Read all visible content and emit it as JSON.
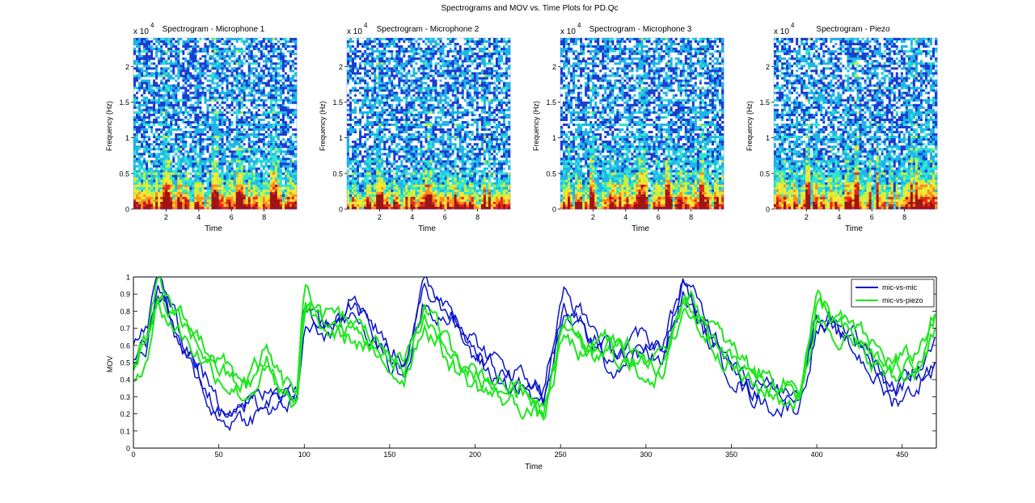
{
  "figure": {
    "title": "Spectrograms and MOV vs. Time Plots for PD.Qc"
  },
  "chart_data": [
    {
      "type": "heatmap",
      "title": "Spectrogram - Microphone 1",
      "xlabel": "Time",
      "ylabel": "Frequency (Hz)",
      "y_exponent_label": "x 10",
      "y_exponent": "4",
      "xlim": [
        0,
        10
      ],
      "ylim": [
        0,
        2.4
      ],
      "xticks": [
        "2",
        "4",
        "6",
        "8"
      ],
      "yticks": [
        "0",
        "0.5",
        "1",
        "1.5",
        "2"
      ],
      "segment_boundaries": [
        2.0,
        5.0,
        6.5,
        8.6
      ],
      "low_freq_energy": 0.8,
      "colormap": [
        "#1a3cd2",
        "#1fb4e6",
        "#2ee6d2",
        "#c8f03c",
        "#ffe632",
        "#ff8c1e",
        "#e6281e",
        "#a01414"
      ]
    },
    {
      "type": "heatmap",
      "title": "Spectrogram - Microphone 2",
      "xlabel": "Time",
      "ylabel": "Frequency (Hz)",
      "y_exponent_label": "x 10",
      "y_exponent": "4",
      "xlim": [
        0,
        10
      ],
      "ylim": [
        0,
        2.4
      ],
      "xticks": [
        "2",
        "4",
        "6",
        "8"
      ],
      "yticks": [
        "0",
        "0.5",
        "1",
        "1.5",
        "2"
      ],
      "segment_boundaries": [
        2.0,
        5.0,
        6.5,
        8.6
      ],
      "low_freq_energy": 0.65,
      "colormap": [
        "#1a3cd2",
        "#1fb4e6",
        "#2ee6d2",
        "#c8f03c",
        "#ffe632",
        "#ff8c1e",
        "#e6281e",
        "#a01414"
      ]
    },
    {
      "type": "heatmap",
      "title": "Spectrogram - Microphone 3",
      "xlabel": "Time",
      "ylabel": "Frequency (Hz)",
      "y_exponent_label": "x 10",
      "y_exponent": "4",
      "xlim": [
        0,
        10
      ],
      "ylim": [
        0,
        2.4
      ],
      "xticks": [
        "2",
        "4",
        "6",
        "8"
      ],
      "yticks": [
        "0",
        "0.5",
        "1",
        "1.5",
        "2"
      ],
      "segment_boundaries": [
        2.0,
        5.0,
        6.5,
        8.6
      ],
      "low_freq_energy": 0.85,
      "colormap": [
        "#1a3cd2",
        "#1fb4e6",
        "#2ee6d2",
        "#c8f03c",
        "#ffe632",
        "#ff8c1e",
        "#e6281e",
        "#a01414"
      ]
    },
    {
      "type": "heatmap",
      "title": "Spectrogram - Piezo",
      "xlabel": "Time",
      "ylabel": "Frequency (Hz)",
      "y_exponent_label": "x 10",
      "y_exponent": "4",
      "xlim": [
        0,
        10
      ],
      "ylim": [
        0,
        2.4
      ],
      "xticks": [
        "2",
        "4",
        "6",
        "8"
      ],
      "yticks": [
        "0",
        "0.5",
        "1",
        "1.5",
        "2"
      ],
      "segment_boundaries": [
        2.0,
        5.0,
        6.5,
        8.6
      ],
      "low_freq_energy": 0.95,
      "colormap": [
        "#1a3cd2",
        "#1fb4e6",
        "#2ee6d2",
        "#c8f03c",
        "#ffe632",
        "#ff8c1e",
        "#e6281e",
        "#a01414"
      ]
    },
    {
      "type": "line",
      "title": "",
      "xlabel": "Time",
      "ylabel": "MOV",
      "xlim": [
        0,
        470
      ],
      "ylim": [
        0,
        1
      ],
      "xticks": [
        "0",
        "50",
        "100",
        "150",
        "200",
        "250",
        "300",
        "350",
        "400",
        "450"
      ],
      "yticks": [
        "0",
        "0.1",
        "0.2",
        "0.3",
        "0.4",
        "0.5",
        "0.6",
        "0.7",
        "0.8",
        "0.9",
        "1"
      ],
      "legend_position": "top-right",
      "series": [
        {
          "name": "mic-vs-mic",
          "color": "#0a14c8",
          "curves": 3,
          "anchors": [
            [
              0,
              0.55
            ],
            [
              8,
              0.65
            ],
            [
              14,
              0.95
            ],
            [
              20,
              0.85
            ],
            [
              28,
              0.6
            ],
            [
              38,
              0.45
            ],
            [
              50,
              0.2
            ],
            [
              62,
              0.22
            ],
            [
              75,
              0.25
            ],
            [
              88,
              0.3
            ],
            [
              96,
              0.32
            ],
            [
              100,
              0.78
            ],
            [
              115,
              0.7
            ],
            [
              130,
              0.85
            ],
            [
              145,
              0.6
            ],
            [
              158,
              0.45
            ],
            [
              170,
              0.9
            ],
            [
              185,
              0.8
            ],
            [
              198,
              0.6
            ],
            [
              212,
              0.45
            ],
            [
              226,
              0.4
            ],
            [
              240,
              0.3
            ],
            [
              252,
              0.85
            ],
            [
              266,
              0.7
            ],
            [
              280,
              0.5
            ],
            [
              296,
              0.6
            ],
            [
              310,
              0.55
            ],
            [
              322,
              0.95
            ],
            [
              334,
              0.72
            ],
            [
              348,
              0.5
            ],
            [
              362,
              0.35
            ],
            [
              378,
              0.28
            ],
            [
              390,
              0.3
            ],
            [
              400,
              0.75
            ],
            [
              414,
              0.7
            ],
            [
              428,
              0.55
            ],
            [
              444,
              0.32
            ],
            [
              458,
              0.4
            ],
            [
              470,
              0.55
            ]
          ]
        },
        {
          "name": "mic-vs-piezo",
          "color": "#1ee61e",
          "curves": 3,
          "anchors": [
            [
              0,
              0.45
            ],
            [
              8,
              0.6
            ],
            [
              14,
              0.9
            ],
            [
              20,
              0.8
            ],
            [
              30,
              0.7
            ],
            [
              42,
              0.55
            ],
            [
              55,
              0.42
            ],
            [
              66,
              0.35
            ],
            [
              78,
              0.5
            ],
            [
              88,
              0.32
            ],
            [
              96,
              0.3
            ],
            [
              100,
              0.85
            ],
            [
              115,
              0.72
            ],
            [
              130,
              0.68
            ],
            [
              145,
              0.55
            ],
            [
              158,
              0.45
            ],
            [
              170,
              0.78
            ],
            [
              185,
              0.55
            ],
            [
              198,
              0.42
            ],
            [
              212,
              0.35
            ],
            [
              226,
              0.3
            ],
            [
              240,
              0.22
            ],
            [
              252,
              0.7
            ],
            [
              266,
              0.55
            ],
            [
              280,
              0.6
            ],
            [
              296,
              0.5
            ],
            [
              310,
              0.45
            ],
            [
              322,
              0.88
            ],
            [
              334,
              0.72
            ],
            [
              348,
              0.55
            ],
            [
              362,
              0.42
            ],
            [
              378,
              0.34
            ],
            [
              390,
              0.32
            ],
            [
              400,
              0.82
            ],
            [
              414,
              0.7
            ],
            [
              428,
              0.6
            ],
            [
              444,
              0.45
            ],
            [
              458,
              0.5
            ],
            [
              470,
              0.75
            ]
          ]
        }
      ]
    }
  ]
}
